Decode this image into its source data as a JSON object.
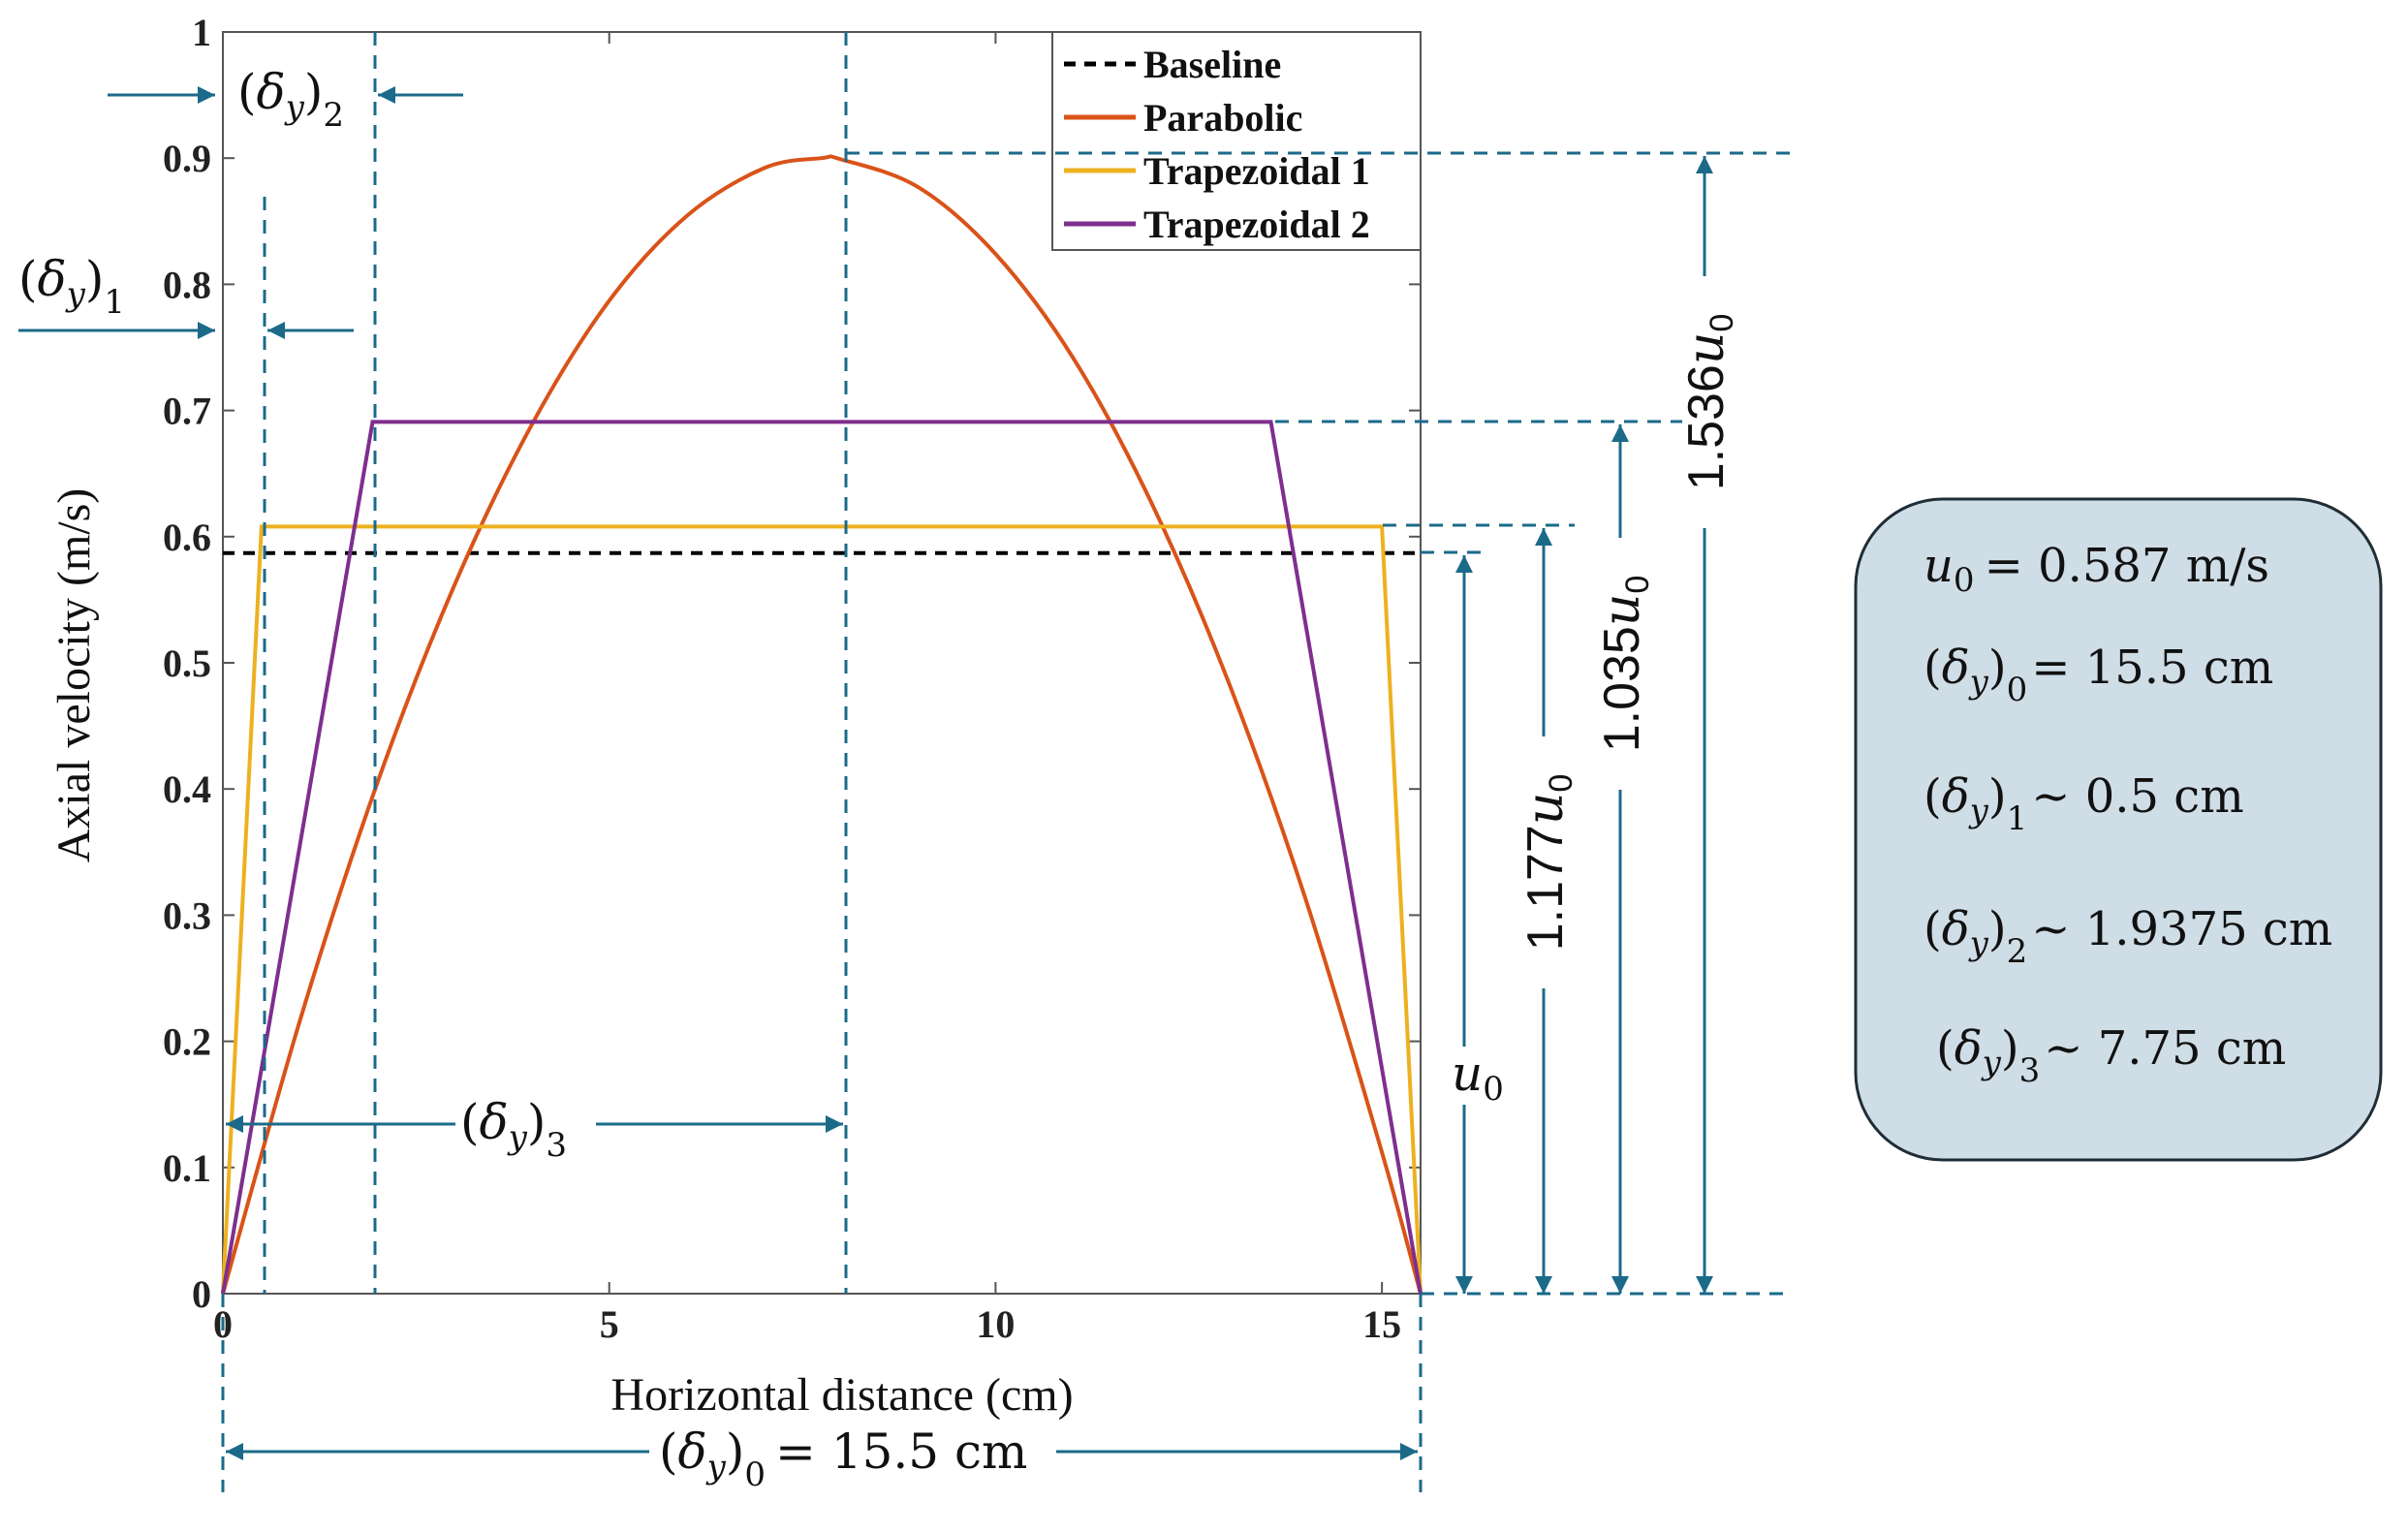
{
  "chart_data": {
    "type": "line",
    "xlabel": "Horizontal distance (cm)",
    "ylabel": "Axial velocity (m/s)",
    "xlim": [
      0,
      15.5
    ],
    "ylim": [
      0,
      1
    ],
    "xticks": [
      0,
      5,
      10,
      15
    ],
    "xtick_labels": [
      "0",
      "5",
      "10",
      "15"
    ],
    "yticks": [
      0,
      0.1,
      0.2,
      0.3,
      0.4,
      0.5,
      0.6,
      0.7,
      0.8,
      0.9,
      1
    ],
    "ytick_labels": [
      "0",
      "0.1",
      "0.2",
      "0.3",
      "0.4",
      "0.5",
      "0.6",
      "0.7",
      "0.8",
      "0.9",
      "1"
    ],
    "grid": false,
    "legend_position": "top-right",
    "series": [
      {
        "name": "Baseline",
        "color": "#000000",
        "style": "dashed",
        "x": [
          0,
          15.5
        ],
        "y": [
          0.587,
          0.587
        ]
      },
      {
        "name": "Parabolic",
        "color": "#D95319",
        "style": "solid",
        "x": [
          0,
          1,
          2,
          3,
          4,
          5,
          6,
          7,
          7.75,
          8,
          9,
          10,
          11,
          12,
          13,
          14,
          15,
          15.5
        ],
        "y": [
          0,
          0.217,
          0.405,
          0.562,
          0.689,
          0.787,
          0.854,
          0.892,
          0.9,
          0.899,
          0.877,
          0.824,
          0.742,
          0.629,
          0.487,
          0.315,
          0.112,
          0
        ]
      },
      {
        "name": "Trapezoidal 1",
        "color": "#EDB120",
        "style": "solid",
        "x": [
          0,
          0.5,
          15,
          15.5
        ],
        "y": [
          0,
          0.608,
          0.608,
          0
        ]
      },
      {
        "name": "Trapezoidal 2",
        "color": "#7E2F8E",
        "style": "solid",
        "x": [
          0,
          1.9375,
          13.5625,
          15.5
        ],
        "y": [
          0,
          0.691,
          0.691,
          0
        ]
      }
    ],
    "annotations": {
      "delta": "δ",
      "var": "y",
      "d0_index": "0",
      "d0_value": "= 15.5 cm",
      "d1_index": "1",
      "d2_index": "2",
      "d3_index": "3",
      "u_symbol": "u",
      "u_index": "0",
      "k_1177": "1.177",
      "k_1035": "1.035",
      "k_1536": "1.536"
    }
  },
  "info_box": {
    "fill": "#cfdde6",
    "u_line": {
      "symbol": "u",
      "index": "0",
      "value": "= 0.587  m/s"
    },
    "lines": [
      {
        "index": "0",
        "value": "=  15.5 cm"
      },
      {
        "index": "1",
        "value": "~ 0.5 cm"
      },
      {
        "index": "2",
        "value": "~ 1.9375 cm"
      },
      {
        "index": "3",
        "value": "~ 7.75 cm"
      }
    ]
  }
}
